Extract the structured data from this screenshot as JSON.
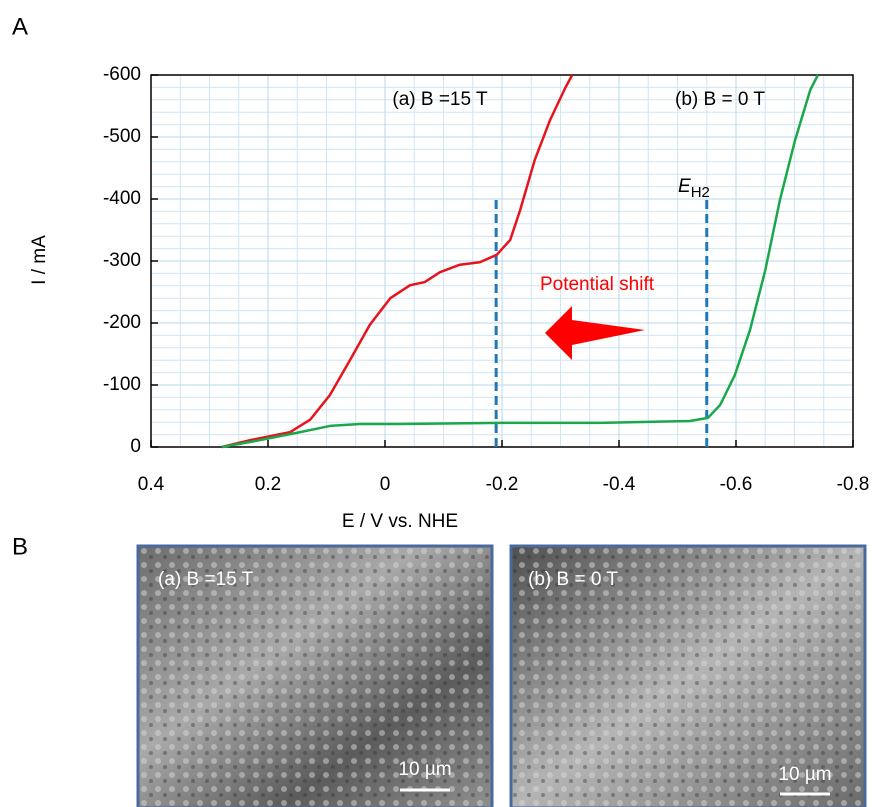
{
  "panel_labels": [
    "A",
    "B"
  ],
  "chart_data": {
    "type": "line",
    "x_label": "E / V vs. NHE",
    "y_label": "I / mA",
    "xlim": [
      0.4,
      -0.8
    ],
    "xticks": [
      0.4,
      0.2,
      0,
      -0.2,
      -0.4,
      -0.6,
      -0.8
    ],
    "ylim": [
      0,
      -600
    ],
    "yticks": [
      0,
      -100,
      -200,
      -300,
      -400,
      -500,
      -600
    ],
    "grid": true,
    "series": [
      {
        "name": "(a) B =15 T",
        "color": "#e8141c",
        "x": [
          0.279,
          0.231,
          0.162,
          0.128,
          0.094,
          0.06,
          0.026,
          -0.009,
          -0.043,
          -0.068,
          -0.094,
          -0.128,
          -0.162,
          -0.191,
          -0.214,
          -0.231,
          -0.256,
          -0.282,
          -0.308,
          -0.32
        ],
        "values": [
          0,
          -11,
          -24,
          -44,
          -84,
          -140,
          -197,
          -240,
          -261,
          -266,
          -282,
          -294,
          -298,
          -310,
          -334,
          -382,
          -463,
          -527,
          -579,
          -600
        ]
      },
      {
        "name": "(b) B = 0 T",
        "color": "#1aa84a",
        "x": [
          0.279,
          0.214,
          0.145,
          0.094,
          0.043,
          -0.026,
          -0.197,
          -0.368,
          -0.521,
          -0.552,
          -0.573,
          -0.598,
          -0.624,
          -0.65,
          -0.675,
          -0.701,
          -0.727,
          -0.74
        ],
        "values": [
          0,
          -11,
          -24,
          -34,
          -37,
          -37,
          -39,
          -39,
          -42,
          -47,
          -68,
          -116,
          -189,
          -285,
          -398,
          -495,
          -576,
          -600
        ]
      }
    ],
    "reference_lines": [
      {
        "x": -0.19,
        "y_top": -400,
        "color": "#1f78b8"
      },
      {
        "x": -0.55,
        "y_top": -400,
        "color": "#1f78b8"
      }
    ],
    "annotations": {
      "shift": "Potential shift",
      "eh2": {
        "text": "E",
        "subscript": "H2"
      }
    }
  },
  "images": [
    {
      "label": "(a) B =15 T",
      "scale_bar": "10 µm"
    },
    {
      "label": "(b) B = 0 T",
      "scale_bar": "10 µm"
    }
  ]
}
